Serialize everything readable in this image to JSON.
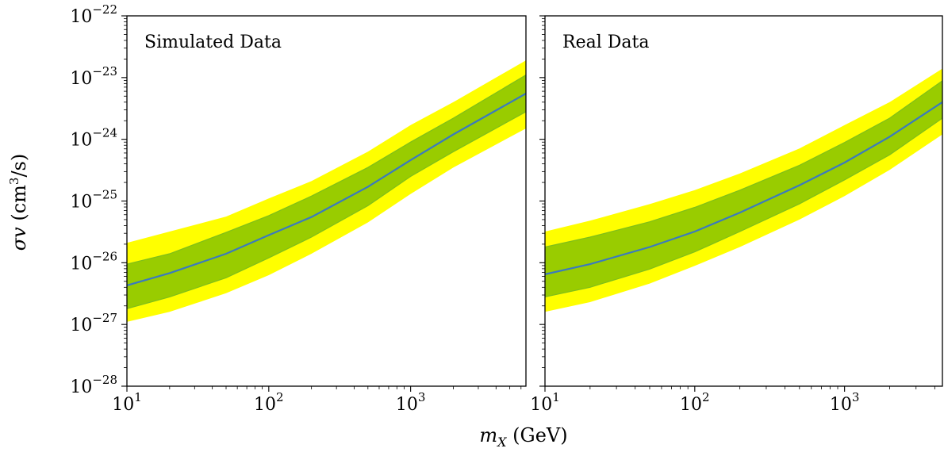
{
  "chart_data": [
    {
      "type": "line",
      "panel_label": "Simulated Data",
      "x_scale": "log",
      "y_scale": "log",
      "xlim": [
        10,
        6500
      ],
      "ylim": [
        1e-28,
        1e-22
      ],
      "x_tick_labels": [
        {
          "value": 10,
          "base": "10",
          "exp": "1"
        },
        {
          "value": 100,
          "base": "10",
          "exp": "2"
        },
        {
          "value": 1000,
          "base": "10",
          "exp": "3"
        }
      ],
      "y_tick_labels": [
        {
          "value": 1e-28,
          "base": "10",
          "exp": "−28"
        },
        {
          "value": 1e-27,
          "base": "10",
          "exp": "−27"
        },
        {
          "value": 1e-26,
          "base": "10",
          "exp": "−26"
        },
        {
          "value": 1e-25,
          "base": "10",
          "exp": "−25"
        },
        {
          "value": 1e-24,
          "base": "10",
          "exp": "−24"
        },
        {
          "value": 1e-23,
          "base": "10",
          "exp": "−23"
        },
        {
          "value": 1e-22,
          "base": "10",
          "exp": "−22"
        }
      ],
      "x": [
        10,
        20,
        50,
        100,
        200,
        500,
        1000,
        2000,
        6500
      ],
      "series": [
        {
          "role": "band_95_upper",
          "values": [
            2.1e-26,
            3.2e-26,
            5.6e-26,
            1.1e-25,
            2.1e-25,
            6.3e-25,
            1.7e-24,
            4e-24,
            1.9e-23
          ]
        },
        {
          "role": "band_68_upper",
          "values": [
            9.5e-27,
            1.4e-26,
            3.1e-26,
            5.8e-26,
            1.2e-25,
            3.5e-25,
            9e-25,
            2.2e-24,
            1.1e-23
          ]
        },
        {
          "role": "median",
          "values": [
            4.3e-27,
            6.8e-27,
            1.4e-26,
            2.8e-26,
            5.5e-26,
            1.7e-25,
            4.6e-25,
            1.2e-24,
            5.5e-24
          ]
        },
        {
          "role": "band_68_lower",
          "values": [
            1.8e-27,
            2.8e-27,
            5.7e-27,
            1.2e-26,
            2.6e-26,
            8.4e-26,
            2.5e-25,
            6.3e-25,
            2.8e-24
          ]
        },
        {
          "role": "band_95_lower",
          "values": [
            1.1e-27,
            1.6e-27,
            3.2e-27,
            6.3e-27,
            1.4e-26,
            4.5e-26,
            1.3e-25,
            3.5e-25,
            1.5e-24
          ]
        }
      ]
    },
    {
      "type": "line",
      "panel_label": "Real Data",
      "x_scale": "log",
      "y_scale": "log",
      "xlim": [
        10,
        4500
      ],
      "ylim": [
        1e-28,
        1e-22
      ],
      "x_tick_labels": [
        {
          "value": 10,
          "base": "10",
          "exp": "1"
        },
        {
          "value": 100,
          "base": "10",
          "exp": "2"
        },
        {
          "value": 1000,
          "base": "10",
          "exp": "3"
        }
      ],
      "y_tick_labels": [],
      "x": [
        10,
        20,
        50,
        100,
        200,
        500,
        1000,
        2000,
        4500
      ],
      "series": [
        {
          "role": "band_95_upper",
          "values": [
            3.2e-26,
            4.8e-26,
            8.9e-26,
            1.5e-25,
            2.8e-25,
            7.1e-25,
            1.7e-24,
            4e-24,
            1.4e-23
          ]
        },
        {
          "role": "band_68_upper",
          "values": [
            1.8e-26,
            2.6e-26,
            4.6e-26,
            7.9e-26,
            1.5e-25,
            3.8e-25,
            8.9e-25,
            2.2e-24,
            8.9e-24
          ]
        },
        {
          "role": "median",
          "values": [
            6.5e-27,
            9.5e-27,
            1.8e-26,
            3.2e-26,
            6.5e-26,
            1.8e-25,
            4.2e-25,
            1.1e-24,
            4e-24
          ]
        },
        {
          "role": "band_68_lower",
          "values": [
            2.8e-27,
            4e-27,
            7.9e-27,
            1.5e-26,
            3.2e-26,
            9e-26,
            2.2e-25,
            5.6e-25,
            2.2e-24
          ]
        },
        {
          "role": "band_95_lower",
          "values": [
            1.6e-27,
            2.3e-27,
            4.6e-27,
            8.9e-27,
            1.8e-26,
            5e-26,
            1.2e-25,
            3.2e-25,
            1.2e-24
          ]
        }
      ]
    }
  ],
  "axes": {
    "ylabel_prefix": "σv",
    "ylabel_unit_open": " (cm",
    "ylabel_unit_sup": "3",
    "ylabel_unit_close": "/s)",
    "xlabel_var": "m",
    "xlabel_sub": "X",
    "xlabel_unit": " (GeV)"
  },
  "colors": {
    "band_95": "#ffff00",
    "band_68": "#99cc00",
    "band_68_edge": "#7fbf1a",
    "median": "#3a7abf"
  }
}
